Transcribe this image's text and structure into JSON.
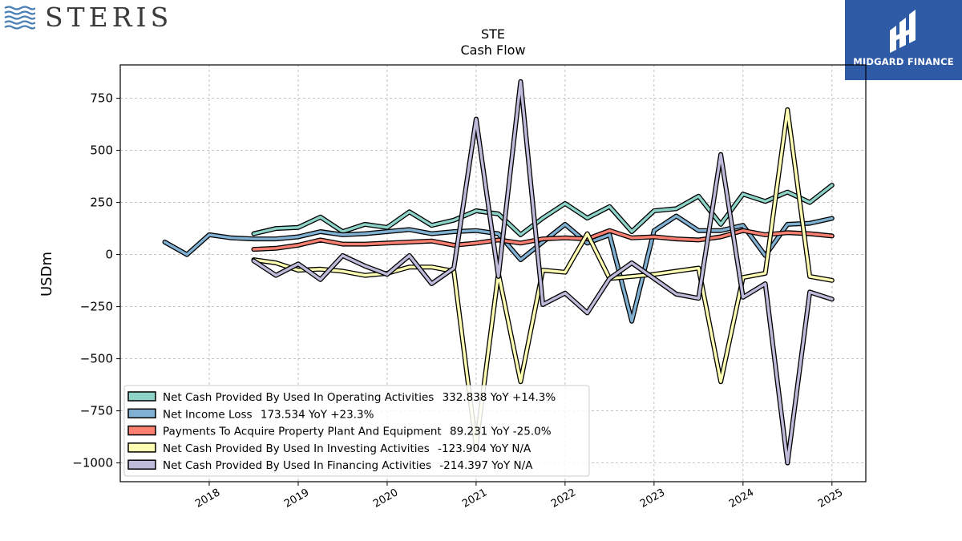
{
  "branding": {
    "left_logo_text": "STERIS",
    "right_logo_text": "MIDGARD FINANCE"
  },
  "colors": {
    "operating": "#8dd3c7",
    "net_income": "#80b1d3",
    "capex": "#fb8072",
    "investing": "#ffffb3",
    "financing": "#bebada",
    "right_logo_bg": "#2f5aa6"
  },
  "chart_data": {
    "type": "line",
    "title": "STE",
    "subtitle": "Cash Flow",
    "xlabel": "",
    "ylabel": "USDm",
    "xlim": [
      2017.0,
      2025.38
    ],
    "ylim": [
      -1090,
      910
    ],
    "xticks": [
      2018,
      2019,
      2020,
      2021,
      2022,
      2023,
      2024,
      2025
    ],
    "yticks": [
      750,
      500,
      250,
      0,
      -250,
      -500,
      -750,
      -1000
    ],
    "ytick_labels": [
      "750",
      "500",
      "250",
      "0",
      "−250",
      "−500",
      "−750",
      "−1000"
    ],
    "grid": true,
    "legend_position": "lower-left",
    "series": [
      {
        "key": "operating",
        "name": "Net Cash Provided By Used In Operating Activities",
        "legend_value": "332.838 YoY +14.3%",
        "points": [
          [
            2018.5,
            100
          ],
          [
            2018.75,
            125
          ],
          [
            2019.0,
            130
          ],
          [
            2019.25,
            180
          ],
          [
            2019.5,
            110
          ],
          [
            2019.75,
            145
          ],
          [
            2020.0,
            130
          ],
          [
            2020.25,
            205
          ],
          [
            2020.5,
            140
          ],
          [
            2020.75,
            165
          ],
          [
            2021.0,
            210
          ],
          [
            2021.25,
            195
          ],
          [
            2021.5,
            95
          ],
          [
            2021.75,
            175
          ],
          [
            2022.0,
            245
          ],
          [
            2022.25,
            175
          ],
          [
            2022.5,
            230
          ],
          [
            2022.75,
            110
          ],
          [
            2023.0,
            210
          ],
          [
            2023.25,
            220
          ],
          [
            2023.5,
            280
          ],
          [
            2023.75,
            145
          ],
          [
            2024.0,
            290
          ],
          [
            2024.25,
            255
          ],
          [
            2024.5,
            300
          ],
          [
            2024.75,
            250
          ],
          [
            2025.0,
            332.838
          ]
        ]
      },
      {
        "key": "net_income",
        "name": "Net Income Loss",
        "legend_value": "173.534 YoY +23.3%",
        "points": [
          [
            2017.5,
            60
          ],
          [
            2017.75,
            0
          ],
          [
            2018.0,
            95
          ],
          [
            2018.25,
            80
          ],
          [
            2018.5,
            75
          ],
          [
            2018.75,
            75
          ],
          [
            2019.0,
            85
          ],
          [
            2019.25,
            110
          ],
          [
            2019.5,
            95
          ],
          [
            2019.75,
            100
          ],
          [
            2020.0,
            110
          ],
          [
            2020.25,
            120
          ],
          [
            2020.5,
            100
          ],
          [
            2020.75,
            110
          ],
          [
            2021.0,
            115
          ],
          [
            2021.25,
            100
          ],
          [
            2021.5,
            -25
          ],
          [
            2021.75,
            60
          ],
          [
            2022.0,
            145
          ],
          [
            2022.25,
            55
          ],
          [
            2022.5,
            95
          ],
          [
            2022.75,
            -320
          ],
          [
            2023.0,
            115
          ],
          [
            2023.25,
            185
          ],
          [
            2023.5,
            115
          ],
          [
            2023.75,
            115
          ],
          [
            2024.0,
            140
          ],
          [
            2024.25,
            -5
          ],
          [
            2024.5,
            145
          ],
          [
            2024.75,
            150
          ],
          [
            2025.0,
            173.534
          ]
        ]
      },
      {
        "key": "capex",
        "name": "Payments To Acquire Property Plant And Equipment",
        "legend_value": "89.231 YoY -25.0%",
        "points": [
          [
            2018.5,
            25
          ],
          [
            2018.75,
            30
          ],
          [
            2019.0,
            45
          ],
          [
            2019.25,
            70
          ],
          [
            2019.5,
            50
          ],
          [
            2019.75,
            50
          ],
          [
            2020.0,
            55
          ],
          [
            2020.25,
            60
          ],
          [
            2020.5,
            65
          ],
          [
            2020.75,
            45
          ],
          [
            2021.0,
            55
          ],
          [
            2021.25,
            70
          ],
          [
            2021.5,
            55
          ],
          [
            2021.75,
            75
          ],
          [
            2022.0,
            80
          ],
          [
            2022.25,
            75
          ],
          [
            2022.5,
            115
          ],
          [
            2022.75,
            80
          ],
          [
            2023.0,
            85
          ],
          [
            2023.25,
            75
          ],
          [
            2023.5,
            70
          ],
          [
            2023.75,
            85
          ],
          [
            2024.0,
            115
          ],
          [
            2024.25,
            95
          ],
          [
            2024.5,
            105
          ],
          [
            2024.75,
            100
          ],
          [
            2025.0,
            89.231
          ]
        ]
      },
      {
        "key": "investing",
        "name": "Net Cash Provided By Used In Investing Activities",
        "legend_value": "-123.904 YoY N/A",
        "points": [
          [
            2018.5,
            -25
          ],
          [
            2018.75,
            -40
          ],
          [
            2019.0,
            -75
          ],
          [
            2019.25,
            -70
          ],
          [
            2019.5,
            -80
          ],
          [
            2019.75,
            -100
          ],
          [
            2020.0,
            -90
          ],
          [
            2020.25,
            -60
          ],
          [
            2020.5,
            -60
          ],
          [
            2020.75,
            -80
          ],
          [
            2021.0,
            -920
          ],
          [
            2021.25,
            -90
          ],
          [
            2021.5,
            -610
          ],
          [
            2021.75,
            -75
          ],
          [
            2022.0,
            -85
          ],
          [
            2022.25,
            100
          ],
          [
            2022.5,
            -115
          ],
          [
            2022.75,
            -105
          ],
          [
            2023.0,
            -95
          ],
          [
            2023.25,
            -80
          ],
          [
            2023.5,
            -65
          ],
          [
            2023.75,
            -610
          ],
          [
            2024.0,
            -110
          ],
          [
            2024.25,
            -90
          ],
          [
            2024.5,
            695
          ],
          [
            2024.75,
            -105
          ],
          [
            2025.0,
            -123.904
          ]
        ]
      },
      {
        "key": "financing",
        "name": "Net Cash Provided By Used In Financing Activities",
        "legend_value": "-214.397 YoY N/A",
        "points": [
          [
            2018.5,
            -30
          ],
          [
            2018.75,
            -100
          ],
          [
            2019.0,
            -45
          ],
          [
            2019.25,
            -120
          ],
          [
            2019.5,
            -5
          ],
          [
            2019.75,
            -55
          ],
          [
            2020.0,
            -95
          ],
          [
            2020.25,
            -5
          ],
          [
            2020.5,
            -140
          ],
          [
            2020.75,
            -65
          ],
          [
            2021.0,
            650
          ],
          [
            2021.25,
            -105
          ],
          [
            2021.5,
            830
          ],
          [
            2021.75,
            -240
          ],
          [
            2022.0,
            -185
          ],
          [
            2022.25,
            -280
          ],
          [
            2022.5,
            -115
          ],
          [
            2022.75,
            -40
          ],
          [
            2023.0,
            -115
          ],
          [
            2023.25,
            -190
          ],
          [
            2023.5,
            -210
          ],
          [
            2023.75,
            480
          ],
          [
            2024.0,
            -205
          ],
          [
            2024.25,
            -140
          ],
          [
            2024.5,
            -1000
          ],
          [
            2024.75,
            -180
          ],
          [
            2025.0,
            -214.397
          ]
        ]
      }
    ]
  }
}
